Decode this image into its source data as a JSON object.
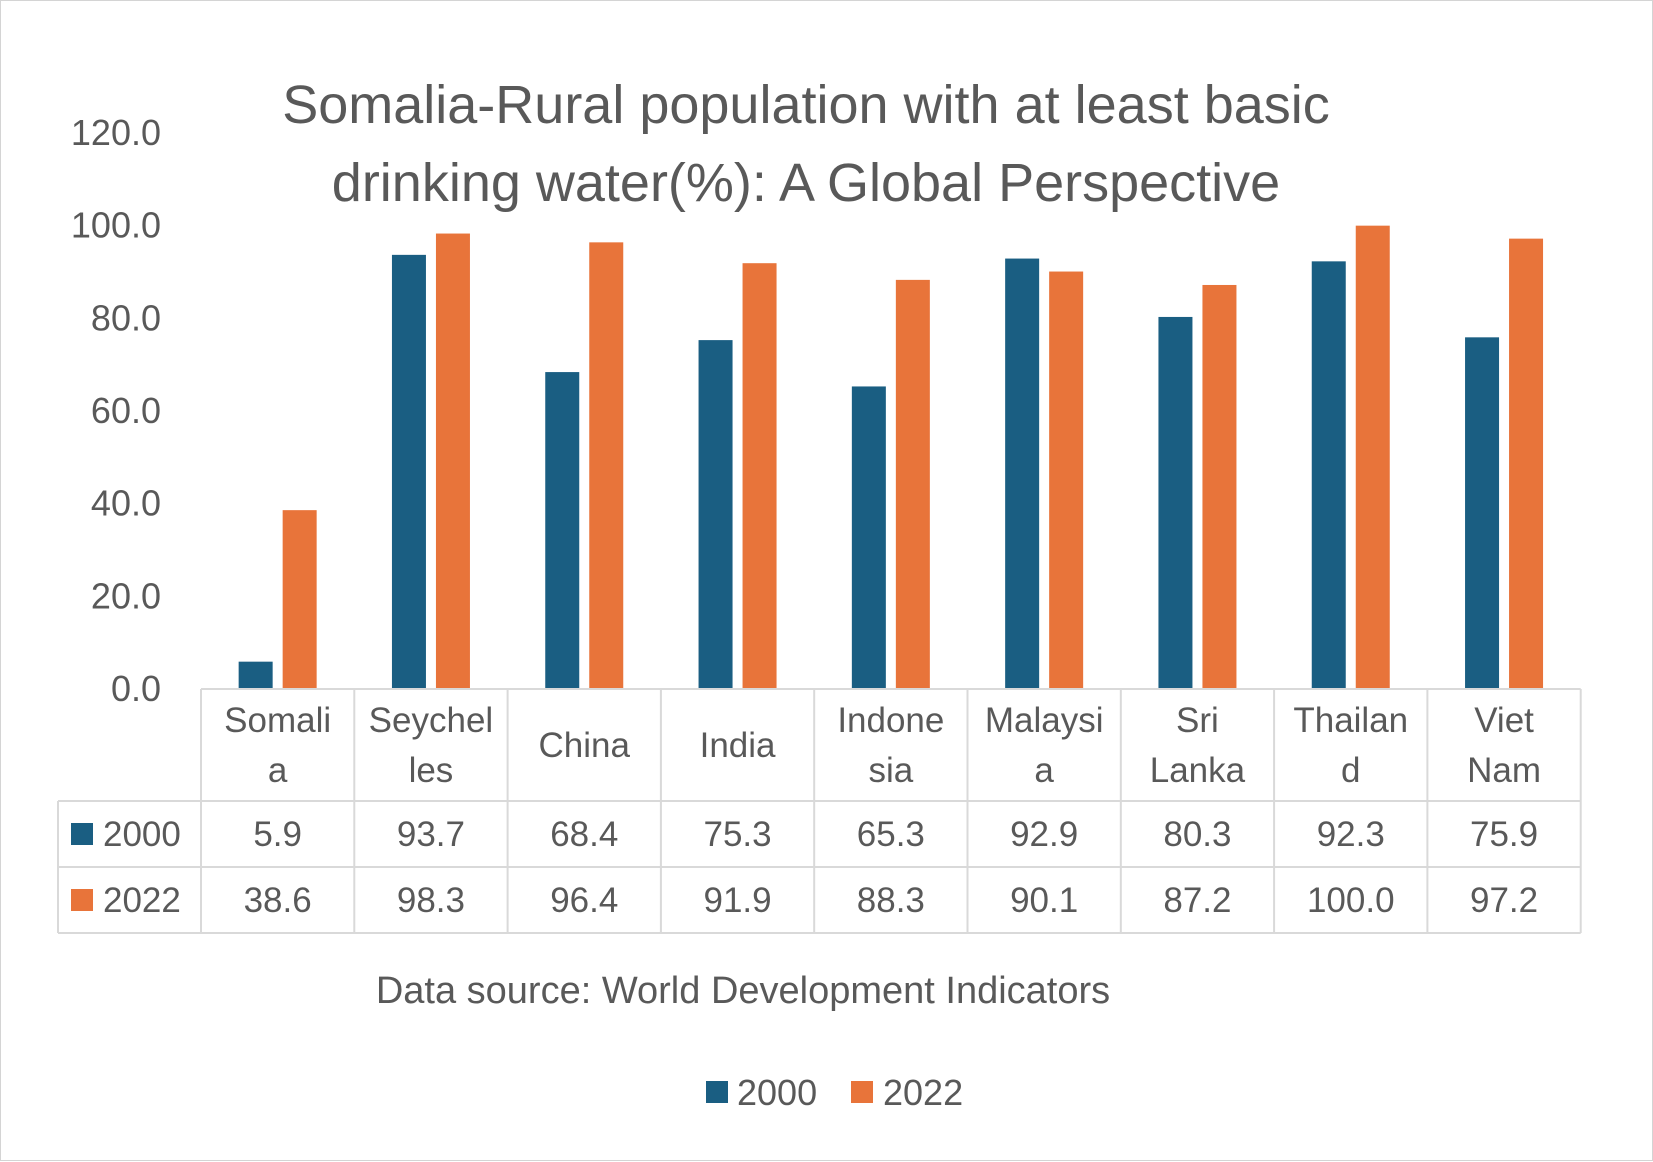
{
  "colors": {
    "series_2000": "#1a5e82",
    "series_2022": "#e8743a",
    "grid": "#d9d9d9",
    "text": "#595959"
  },
  "chart_data": {
    "type": "bar",
    "title": "Somalia-Rural population with at least basic drinking water(%): A Global Perspective",
    "title_lines": [
      "Somalia-Rural population with at least basic",
      "drinking water(%): A Global Perspective"
    ],
    "categories": [
      "Somalia",
      "Seychelles",
      "China",
      "India",
      "Indonesia",
      "Malaysia",
      "Sri Lanka",
      "Thailand",
      "Viet Nam"
    ],
    "category_label_lines": [
      [
        "Somali",
        "a"
      ],
      [
        "Seychel",
        "les"
      ],
      [
        "China"
      ],
      [
        "India"
      ],
      [
        "Indone",
        "sia"
      ],
      [
        "Malaysi",
        "a"
      ],
      [
        "Sri",
        "Lanka"
      ],
      [
        "Thailan",
        "d"
      ],
      [
        "Viet",
        "Nam"
      ]
    ],
    "series": [
      {
        "name": "2000",
        "values": [
          5.9,
          93.7,
          68.4,
          75.3,
          65.3,
          92.9,
          80.3,
          92.3,
          75.9
        ],
        "display": [
          "5.9",
          "93.7",
          "68.4",
          "75.3",
          "65.3",
          "92.9",
          "80.3",
          "92.3",
          "75.9"
        ]
      },
      {
        "name": "2022",
        "values": [
          38.6,
          98.3,
          96.4,
          91.9,
          88.3,
          90.1,
          87.2,
          100.0,
          97.2
        ],
        "display": [
          "38.6",
          "98.3",
          "96.4",
          "91.9",
          "88.3",
          "90.1",
          "87.2",
          "100.0",
          "97.2"
        ]
      }
    ],
    "ylim": [
      0,
      120
    ],
    "yticks": [
      "0.0",
      "20.0",
      "40.0",
      "60.0",
      "80.0",
      "100.0",
      "120.0"
    ],
    "xlabel": "",
    "ylabel": "",
    "gridlines": false,
    "data_table": true,
    "legend_position": "bottom",
    "source_note": "Data source: World Development Indicators"
  }
}
